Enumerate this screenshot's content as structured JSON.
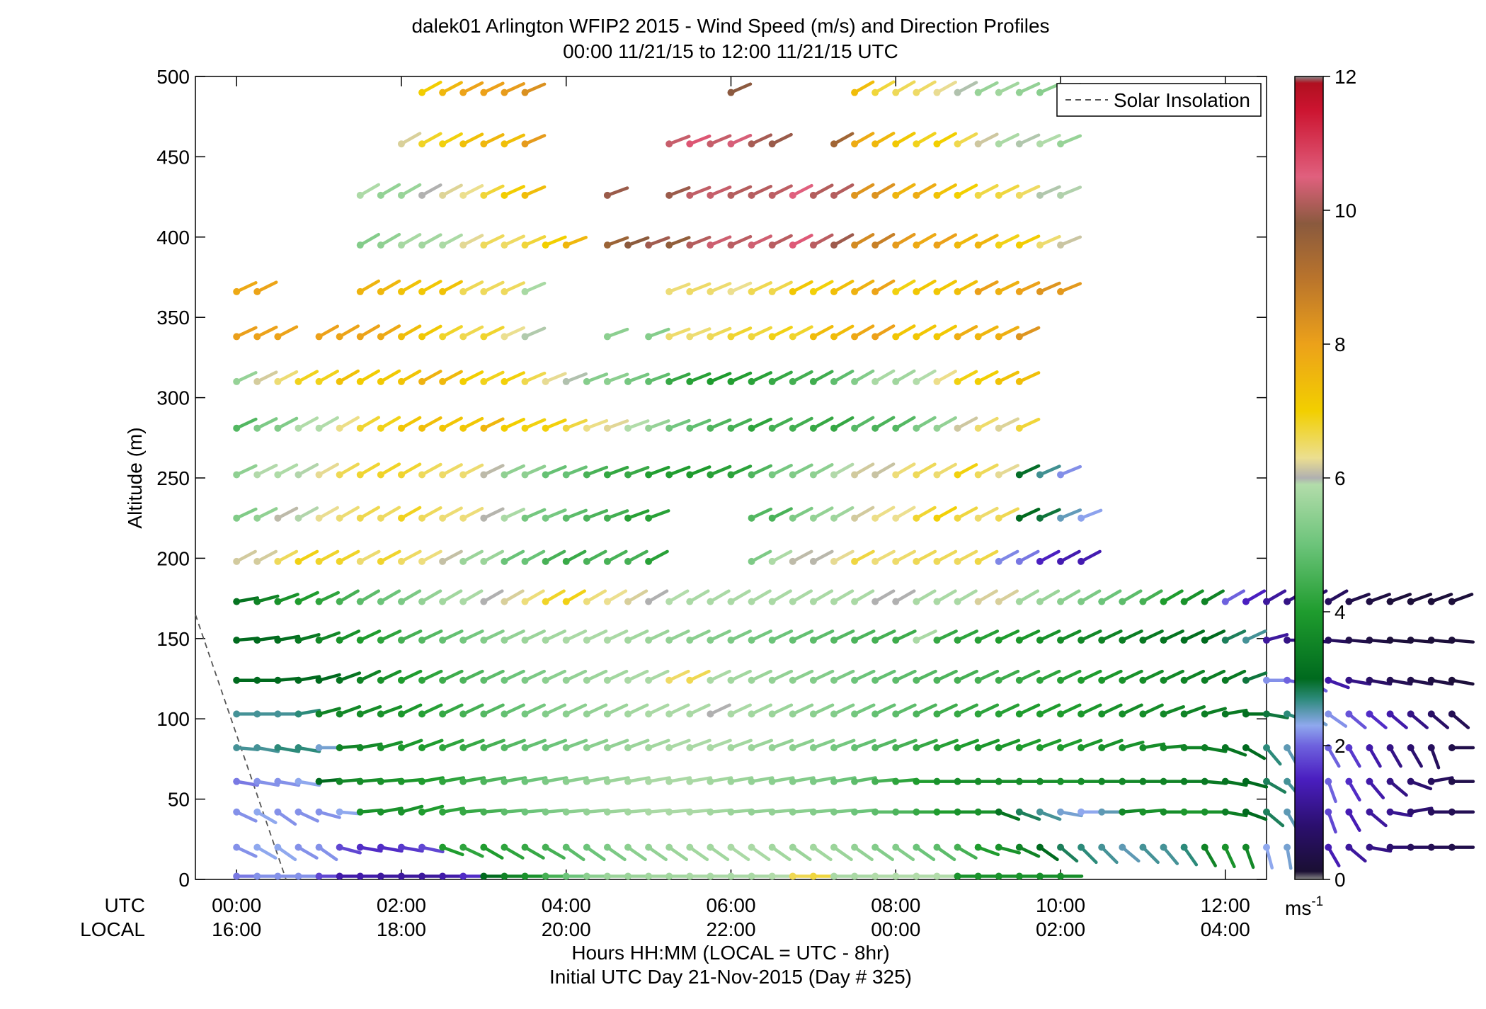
{
  "chart_data": {
    "type": "wind-barb-profile",
    "title": "dalek01 Arlington WFIP2 2015 - Wind Speed (m/s) and Direction Profiles",
    "subtitle": "00:00 11/21/15 to 12:00 11/21/15  UTC",
    "ylabel": "Altitude (m)",
    "xlabel": "Hours HH:MM  (LOCAL = UTC - 8hr)",
    "xlabel2": "Initial UTC Day 21-Nov-2015 (Day # 325)",
    "x_row_label_utc": "UTC",
    "x_row_label_local": "LOCAL",
    "xlim_hours": [
      -0.5,
      12.5
    ],
    "ylim_m": [
      0,
      500
    ],
    "xticks_utc": [
      "00:00",
      "02:00",
      "04:00",
      "06:00",
      "08:00",
      "10:00",
      "12:00"
    ],
    "xticks_local": [
      "16:00",
      "18:00",
      "20:00",
      "22:00",
      "00:00",
      "02:00",
      "04:00"
    ],
    "xtick_hours": [
      0,
      2,
      4,
      6,
      8,
      10,
      12
    ],
    "yticks": [
      0,
      50,
      100,
      150,
      200,
      250,
      300,
      350,
      400,
      450,
      500
    ],
    "legend": {
      "label": "Solar Insolation",
      "placement": "top-right"
    },
    "solar_insolation_line": {
      "x_hours": [
        -0.5,
        0.6
      ],
      "y_m": [
        165,
        0
      ]
    },
    "colorbar": {
      "range": [
        0,
        12
      ],
      "ticks": [
        0,
        2,
        4,
        6,
        8,
        10,
        12
      ],
      "unit": "ms",
      "unit_exp": "-1",
      "stops": [
        {
          "v": 0.0,
          "c": "#888888"
        },
        {
          "v": 0.12,
          "c": "#1a0f33"
        },
        {
          "v": 0.8,
          "c": "#2b0f6e"
        },
        {
          "v": 1.5,
          "c": "#4a1ec0"
        },
        {
          "v": 2.0,
          "c": "#6e62de"
        },
        {
          "v": 2.3,
          "c": "#8fa8ee"
        },
        {
          "v": 2.7,
          "c": "#2c8a7a"
        },
        {
          "v": 3.0,
          "c": "#006a1e"
        },
        {
          "v": 4.0,
          "c": "#1f9c2e"
        },
        {
          "v": 5.0,
          "c": "#6cc47a"
        },
        {
          "v": 5.9,
          "c": "#b2dcaa"
        },
        {
          "v": 6.0,
          "c": "#b0b0b0"
        },
        {
          "v": 6.3,
          "c": "#ecdf90"
        },
        {
          "v": 7.0,
          "c": "#f2cf00"
        },
        {
          "v": 8.0,
          "c": "#eca11a"
        },
        {
          "v": 9.0,
          "c": "#b8732c"
        },
        {
          "v": 9.8,
          "c": "#8a5a3e"
        },
        {
          "v": 10.5,
          "c": "#e0607e"
        },
        {
          "v": 11.5,
          "c": "#cc1430"
        },
        {
          "v": 11.9,
          "c": "#b01020"
        },
        {
          "v": 12.0,
          "c": "#888888"
        }
      ]
    },
    "barb_levels_m": [
      2,
      20,
      42,
      61,
      82,
      103,
      124,
      149,
      173,
      198,
      225,
      252,
      281,
      310,
      338,
      366,
      395,
      426,
      458,
      490
    ],
    "time_step_hours": 0.25,
    "rows": [
      {
        "alt": 2,
        "start": 0,
        "speeds": [
          2.1,
          2.2,
          2.2,
          2.2,
          1.8,
          1.3,
          1.3,
          1.2,
          1.2,
          1.2,
          1.3,
          1.6,
          3.0,
          3.5,
          3.8,
          4.5,
          5.0,
          5.4,
          5.6,
          5.6,
          5.7,
          5.7,
          5.8,
          5.8,
          5.8,
          5.8,
          5.9,
          6.6,
          6.7,
          5.8,
          5.8,
          5.9,
          5.9,
          5.9,
          5.9,
          3.8,
          3.8,
          3.8,
          3.8,
          3.7,
          3.7,
          2.4,
          2.3,
          2.2,
          2.2,
          2.2,
          2.3,
          2.2,
          2.1,
          2.2,
          2.2,
          2.0,
          1.5,
          1.2,
          1.0,
          0.7,
          0.5,
          0.4,
          0.3,
          0.2
        ],
        "dirs": [
          0,
          0,
          0,
          0,
          0,
          0,
          0,
          0,
          0,
          0,
          0,
          0,
          0,
          0,
          0,
          0,
          0,
          0,
          0,
          0,
          0,
          0,
          0,
          0,
          0,
          0,
          0,
          0,
          0,
          0,
          0,
          0,
          0,
          0,
          0,
          0,
          0,
          0,
          0,
          0,
          0,
          0,
          0,
          0,
          0,
          0,
          0,
          0,
          0,
          0,
          0,
          0,
          0,
          0,
          0,
          0,
          0,
          0,
          0,
          0
        ]
      },
      {
        "alt": 20,
        "start": 0,
        "speeds": [
          2.2,
          2.3,
          2.3,
          2.2,
          2.2,
          1.8,
          1.6,
          1.6,
          1.7,
          1.8,
          4.0,
          4.2,
          4.0,
          4.2,
          4.3,
          4.5,
          4.8,
          5.0,
          5.2,
          5.4,
          5.5,
          5.6,
          5.7,
          5.7,
          5.8,
          5.8,
          5.7,
          5.6,
          5.7,
          5.6,
          5.5,
          5.3,
          5.3,
          5.0,
          4.8,
          4.5,
          4.0,
          3.8,
          3.5,
          3.0,
          2.8,
          2.7,
          2.6,
          2.5,
          2.6,
          2.6,
          2.7,
          3.5,
          3.8,
          3.6,
          2.3,
          2.4,
          1.8,
          1.4,
          1.2,
          1.0,
          0.8,
          0.6,
          0.5,
          0.4
        ],
        "dirs": [
          -25,
          -30,
          -35,
          -30,
          -35,
          -15,
          -10,
          -10,
          -10,
          -12,
          -20,
          -25,
          -30,
          -30,
          -30,
          -30,
          -35,
          -35,
          -35,
          -35,
          -35,
          -35,
          -35,
          -35,
          -35,
          -35,
          -35,
          -35,
          -35,
          -35,
          -35,
          -35,
          -35,
          -35,
          -35,
          -30,
          -20,
          -15,
          -25,
          -35,
          -40,
          -45,
          -45,
          -40,
          -45,
          -50,
          -55,
          -60,
          -65,
          -70,
          -75,
          -80,
          -80,
          -60,
          -40,
          -10,
          0,
          0,
          0,
          0
        ]
      },
      {
        "alt": 42,
        "start": 0,
        "speeds": [
          2.2,
          2.3,
          2.2,
          2.2,
          2.2,
          2.3,
          3.8,
          3.8,
          3.8,
          4.0,
          4.2,
          4.3,
          4.5,
          4.8,
          5.0,
          5.2,
          5.4,
          5.5,
          5.6,
          5.7,
          5.8,
          5.8,
          5.8,
          5.7,
          5.6,
          5.5,
          5.5,
          5.4,
          5.3,
          5.2,
          5.0,
          4.8,
          4.6,
          4.3,
          4.0,
          3.8,
          3.8,
          3.2,
          2.8,
          2.6,
          2.4,
          2.3,
          2.5,
          3.6,
          3.8,
          3.7,
          3.9,
          3.8,
          3.4,
          3.0,
          2.8,
          2.5,
          2.2,
          1.8,
          1.4,
          1.2,
          1.1,
          0.8,
          0.6,
          0.5
        ],
        "dirs": [
          -25,
          -30,
          -35,
          -25,
          -15,
          -5,
          5,
          10,
          15,
          15,
          10,
          5,
          5,
          5,
          5,
          5,
          5,
          5,
          5,
          5,
          5,
          5,
          5,
          5,
          5,
          5,
          5,
          5,
          5,
          5,
          5,
          0,
          0,
          0,
          0,
          0,
          0,
          -20,
          -20,
          -20,
          -10,
          0,
          0,
          5,
          5,
          0,
          0,
          0,
          -10,
          -20,
          -40,
          -60,
          -70,
          -70,
          -60,
          -40,
          -10,
          10,
          0,
          0
        ]
      },
      {
        "alt": 61,
        "start": 0,
        "speeds": [
          2.1,
          2.2,
          2.2,
          2.3,
          3.0,
          3.6,
          3.7,
          3.8,
          3.9,
          4.0,
          4.2,
          4.4,
          4.6,
          4.8,
          5.0,
          5.2,
          5.4,
          5.5,
          5.6,
          5.7,
          5.8,
          5.8,
          5.8,
          5.7,
          5.6,
          5.5,
          5.4,
          5.3,
          5.2,
          5.0,
          4.8,
          4.5,
          4.2,
          4.0,
          3.8,
          3.7,
          3.7,
          3.7,
          3.7,
          3.7,
          3.8,
          3.7,
          3.6,
          3.6,
          3.5,
          3.5,
          3.4,
          3.3,
          3.2,
          3.0,
          2.8,
          2.6,
          2.4,
          2.0,
          1.6,
          1.3,
          1.0,
          0.8,
          0.6,
          0.4
        ],
        "dirs": [
          -10,
          -10,
          -10,
          -10,
          5,
          5,
          5,
          5,
          5,
          10,
          10,
          10,
          10,
          10,
          10,
          10,
          10,
          10,
          10,
          10,
          10,
          10,
          10,
          10,
          10,
          10,
          10,
          10,
          10,
          10,
          10,
          5,
          5,
          0,
          0,
          0,
          0,
          0,
          0,
          0,
          0,
          0,
          0,
          0,
          0,
          0,
          0,
          -5,
          -10,
          -15,
          -30,
          -50,
          -60,
          -70,
          -60,
          -50,
          -40,
          -20,
          10,
          0
        ]
      },
      {
        "alt": 82,
        "start": 0,
        "speeds": [
          2.6,
          2.6,
          2.7,
          2.7,
          2.4,
          3.5,
          3.6,
          3.8,
          3.9,
          4.0,
          4.2,
          4.3,
          4.5,
          4.7,
          4.9,
          5.0,
          5.2,
          5.4,
          5.5,
          5.6,
          5.7,
          5.8,
          5.8,
          5.8,
          5.7,
          5.6,
          5.5,
          5.4,
          5.3,
          5.1,
          4.9,
          4.7,
          4.5,
          4.3,
          4.1,
          4.0,
          3.9,
          3.9,
          4.0,
          4.0,
          4.0,
          3.9,
          3.8,
          3.8,
          3.7,
          3.6,
          3.5,
          3.4,
          3.2,
          3.0,
          2.7,
          2.5,
          2.3,
          2.0,
          1.7,
          1.3,
          1.0,
          0.8,
          0.6,
          0.4
        ],
        "dirs": [
          -5,
          -10,
          -10,
          -10,
          0,
          5,
          10,
          15,
          20,
          20,
          20,
          20,
          20,
          20,
          20,
          20,
          20,
          20,
          20,
          20,
          20,
          20,
          20,
          20,
          20,
          20,
          20,
          20,
          20,
          20,
          20,
          20,
          20,
          20,
          20,
          20,
          20,
          20,
          20,
          20,
          20,
          20,
          20,
          15,
          10,
          5,
          0,
          -10,
          -20,
          -30,
          -50,
          -60,
          -60,
          -60,
          -60,
          -60,
          -60,
          -60,
          -70,
          0
        ]
      },
      {
        "alt": 103,
        "start": 0,
        "speeds": [
          2.6,
          2.6,
          2.6,
          2.7,
          3.5,
          3.6,
          3.7,
          3.8,
          3.9,
          4.1,
          4.3,
          4.5,
          4.7,
          4.9,
          5.1,
          5.3,
          5.4,
          5.5,
          5.6,
          5.7,
          5.8,
          5.8,
          5.8,
          6.0,
          5.8,
          5.7,
          5.6,
          5.5,
          5.4,
          5.3,
          5.1,
          4.9,
          4.8,
          4.6,
          4.4,
          4.3,
          4.2,
          4.1,
          4.0,
          4.0,
          4.0,
          3.9,
          3.8,
          3.7,
          3.7,
          3.6,
          3.5,
          3.4,
          3.3,
          3.1,
          2.9,
          2.7,
          2.4,
          2.2,
          1.9,
          1.6,
          1.3,
          1.0,
          0.7,
          0.5
        ],
        "dirs": [
          0,
          0,
          0,
          10,
          15,
          20,
          20,
          20,
          25,
          25,
          25,
          25,
          25,
          25,
          25,
          25,
          25,
          25,
          25,
          25,
          25,
          25,
          25,
          25,
          25,
          25,
          25,
          25,
          25,
          25,
          25,
          25,
          25,
          25,
          25,
          25,
          25,
          25,
          25,
          25,
          25,
          25,
          25,
          25,
          25,
          20,
          20,
          15,
          10,
          0,
          -10,
          -20,
          -30,
          -35,
          -40,
          -40,
          -40,
          -40,
          -40,
          -40
        ]
      },
      {
        "alt": 124,
        "start": 0,
        "speeds": [
          3.0,
          3.0,
          3.0,
          3.0,
          3.0,
          3.2,
          3.5,
          3.8,
          4.0,
          4.2,
          4.4,
          4.6,
          4.8,
          5.0,
          5.2,
          5.4,
          5.5,
          5.6,
          5.7,
          5.8,
          5.8,
          6.5,
          6.6,
          5.8,
          5.7,
          5.6,
          5.5,
          5.4,
          5.3,
          5.2,
          5.0,
          4.9,
          4.8,
          4.7,
          4.6,
          4.5,
          4.5,
          4.4,
          4.3,
          4.2,
          4.1,
          4.0,
          3.9,
          3.8,
          3.7,
          3.6,
          3.5,
          3.4,
          3.3,
          2.9,
          2.2,
          2.0,
          2.0,
          1.3,
          1.0,
          0.7,
          0.5,
          0.4,
          0.3,
          0.2
        ],
        "dirs": [
          0,
          0,
          5,
          10,
          15,
          20,
          25,
          25,
          25,
          25,
          25,
          25,
          25,
          25,
          25,
          25,
          25,
          25,
          25,
          25,
          25,
          25,
          25,
          25,
          25,
          25,
          25,
          25,
          25,
          25,
          25,
          25,
          25,
          25,
          25,
          25,
          25,
          25,
          25,
          25,
          25,
          25,
          25,
          25,
          25,
          25,
          25,
          25,
          25,
          20,
          0,
          -10,
          -30,
          -20,
          -10,
          -10,
          -10,
          -10,
          -10,
          -10
        ]
      },
      {
        "alt": 149,
        "start": 0,
        "speeds": [
          3.0,
          3.0,
          3.1,
          3.3,
          3.6,
          3.8,
          4.0,
          4.2,
          4.5,
          4.7,
          4.9,
          5.1,
          5.3,
          5.5,
          5.6,
          5.7,
          5.8,
          5.8,
          5.8,
          5.7,
          5.6,
          5.5,
          5.4,
          5.3,
          5.2,
          5.1,
          5.0,
          4.9,
          4.8,
          4.7,
          4.6,
          4.5,
          4.4,
          5.8,
          4.3,
          4.2,
          4.1,
          4.0,
          3.9,
          3.8,
          3.7,
          3.6,
          3.5,
          3.4,
          3.3,
          3.2,
          3.1,
          3.0,
          2.8,
          2.6,
          1.2,
          1.0,
          0.8,
          0.6,
          0.4,
          0.3,
          0.2,
          0.2,
          0.2,
          0.2
        ],
        "dirs": [
          5,
          8,
          10,
          15,
          20,
          25,
          25,
          25,
          25,
          25,
          25,
          25,
          25,
          25,
          25,
          25,
          25,
          25,
          25,
          25,
          25,
          25,
          25,
          25,
          25,
          25,
          25,
          25,
          25,
          25,
          25,
          25,
          25,
          25,
          25,
          25,
          25,
          25,
          25,
          25,
          25,
          25,
          25,
          25,
          25,
          25,
          25,
          25,
          25,
          25,
          15,
          0,
          -5,
          -5,
          -5,
          -5,
          -5,
          -5,
          -5,
          -5
        ]
      },
      {
        "alt": 173,
        "start": 0,
        "speeds": [
          3.2,
          3.5,
          3.8,
          4.0,
          4.2,
          4.5,
          4.8,
          5.0,
          5.2,
          5.5,
          5.7,
          5.8,
          6.0,
          6.2,
          6.4,
          6.8,
          6.9,
          6.4,
          6.3,
          6.2,
          6.0,
          5.9,
          5.8,
          5.8,
          5.8,
          5.8,
          5.8,
          5.8,
          5.8,
          5.8,
          5.8,
          6.0,
          6.0,
          5.8,
          5.8,
          5.8,
          6.2,
          6.2,
          5.7,
          5.6,
          5.4,
          5.2,
          5.0,
          4.8,
          4.5,
          4.0,
          3.8,
          3.5,
          2.0,
          1.5,
          1.2,
          1.0,
          0.8,
          0.6,
          0.4,
          0.3,
          0.2,
          0.2,
          0.2,
          0.2
        ],
        "dirs": [
          10,
          15,
          20,
          25,
          25,
          30,
          30,
          30,
          30,
          30,
          30,
          30,
          30,
          30,
          30,
          30,
          30,
          30,
          30,
          30,
          30,
          30,
          30,
          30,
          30,
          30,
          30,
          30,
          30,
          30,
          30,
          30,
          30,
          30,
          30,
          30,
          30,
          30,
          30,
          30,
          30,
          30,
          30,
          30,
          30,
          30,
          30,
          30,
          30,
          30,
          30,
          30,
          30,
          30,
          20,
          20,
          20,
          20,
          20,
          20
        ]
      }
    ]
  }
}
